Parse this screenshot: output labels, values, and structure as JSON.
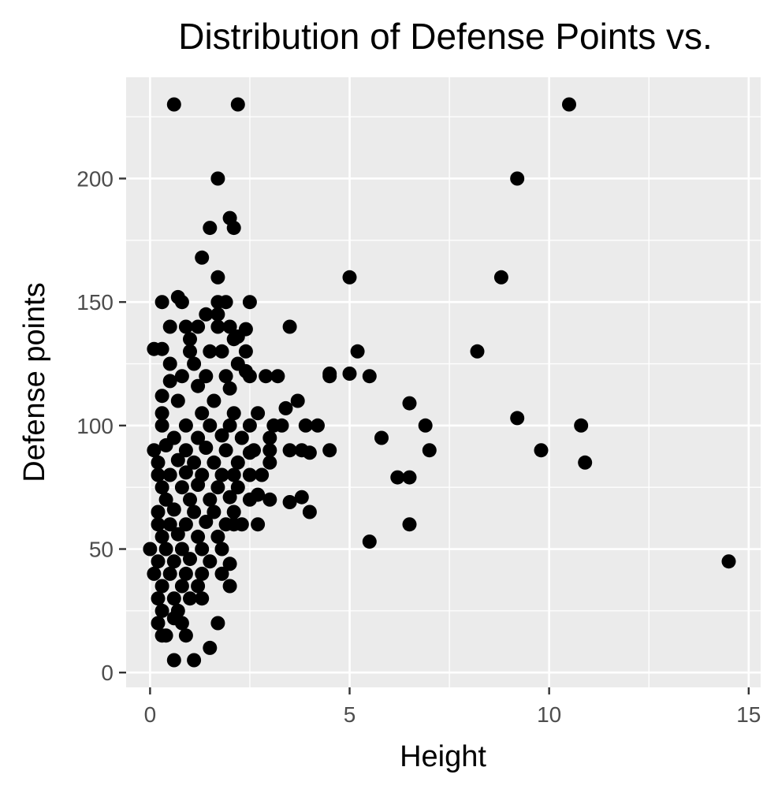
{
  "chart_data": {
    "type": "scatter",
    "title": "Distribution of Defense Points vs.",
    "xlabel": "Height",
    "ylabel": "Defense points",
    "xlim": [
      -0.6,
      15.3
    ],
    "ylim": [
      -6,
      241
    ],
    "x_ticks": [
      0,
      5,
      10,
      15
    ],
    "y_ticks": [
      0,
      50,
      100,
      150,
      200
    ],
    "grid": true,
    "legend": "none",
    "colors": {
      "panel": "#ebebeb",
      "grid": "#ffffff",
      "point": "#000000",
      "tick": "#333333"
    },
    "points": [
      [
        0.6,
        230
      ],
      [
        2.2,
        230
      ],
      [
        10.5,
        230
      ],
      [
        1.7,
        200
      ],
      [
        9.2,
        200
      ],
      [
        2.0,
        184
      ],
      [
        1.5,
        180
      ],
      [
        2.1,
        180
      ],
      [
        1.3,
        168
      ],
      [
        1.7,
        160
      ],
      [
        5.0,
        160
      ],
      [
        8.8,
        160
      ],
      [
        0.3,
        150
      ],
      [
        0.7,
        152
      ],
      [
        0.8,
        150
      ],
      [
        1.7,
        150
      ],
      [
        1.9,
        150
      ],
      [
        2.5,
        150
      ],
      [
        1.4,
        145
      ],
      [
        1.7,
        145
      ],
      [
        0.5,
        140
      ],
      [
        0.9,
        140
      ],
      [
        1.2,
        140
      ],
      [
        1.7,
        140
      ],
      [
        2.0,
        140
      ],
      [
        2.4,
        139
      ],
      [
        3.5,
        140
      ],
      [
        1.0,
        135
      ],
      [
        2.1,
        135
      ],
      [
        2.2,
        136
      ],
      [
        0.1,
        131
      ],
      [
        0.3,
        131
      ],
      [
        1.0,
        130
      ],
      [
        1.5,
        130
      ],
      [
        1.8,
        130
      ],
      [
        2.4,
        130
      ],
      [
        5.2,
        130
      ],
      [
        8.2,
        130
      ],
      [
        0.5,
        125
      ],
      [
        1.1,
        125
      ],
      [
        2.2,
        125
      ],
      [
        2.4,
        122
      ],
      [
        0.8,
        120
      ],
      [
        1.4,
        120
      ],
      [
        1.9,
        120
      ],
      [
        2.5,
        120
      ],
      [
        2.9,
        120
      ],
      [
        3.2,
        120
      ],
      [
        4.5,
        121
      ],
      [
        4.5,
        120
      ],
      [
        5.0,
        121
      ],
      [
        5.5,
        120
      ],
      [
        0.5,
        118
      ],
      [
        1.2,
        116
      ],
      [
        2.0,
        115
      ],
      [
        0.3,
        112
      ],
      [
        0.7,
        110
      ],
      [
        1.6,
        110
      ],
      [
        3.4,
        107
      ],
      [
        3.7,
        110
      ],
      [
        0.3,
        105
      ],
      [
        1.3,
        105
      ],
      [
        2.1,
        105
      ],
      [
        2.7,
        105
      ],
      [
        6.5,
        109
      ],
      [
        9.2,
        103
      ],
      [
        0.3,
        100
      ],
      [
        0.9,
        100
      ],
      [
        1.5,
        100
      ],
      [
        2.0,
        100
      ],
      [
        2.5,
        100
      ],
      [
        3.1,
        100
      ],
      [
        3.3,
        100
      ],
      [
        3.9,
        100
      ],
      [
        4.2,
        100
      ],
      [
        6.9,
        100
      ],
      [
        10.8,
        100
      ],
      [
        0.6,
        95
      ],
      [
        1.2,
        95
      ],
      [
        1.8,
        96
      ],
      [
        2.3,
        95
      ],
      [
        3.0,
        95
      ],
      [
        5.8,
        95
      ],
      [
        0.1,
        90
      ],
      [
        0.4,
        92
      ],
      [
        0.9,
        90
      ],
      [
        1.4,
        91
      ],
      [
        1.9,
        90
      ],
      [
        2.5,
        89
      ],
      [
        2.6,
        90
      ],
      [
        3.0,
        90
      ],
      [
        3.5,
        90
      ],
      [
        3.8,
        90
      ],
      [
        4.0,
        89
      ],
      [
        4.5,
        90
      ],
      [
        7.0,
        90
      ],
      [
        9.8,
        90
      ],
      [
        0.2,
        85
      ],
      [
        0.7,
        86
      ],
      [
        1.1,
        85
      ],
      [
        1.6,
        85
      ],
      [
        2.2,
        85
      ],
      [
        3.0,
        85
      ],
      [
        10.9,
        85
      ],
      [
        0.2,
        80
      ],
      [
        0.5,
        80
      ],
      [
        0.9,
        81
      ],
      [
        1.3,
        80
      ],
      [
        1.8,
        80
      ],
      [
        2.1,
        80
      ],
      [
        2.5,
        80
      ],
      [
        2.8,
        80
      ],
      [
        6.2,
        79
      ],
      [
        6.5,
        79
      ],
      [
        0.3,
        75
      ],
      [
        0.8,
        75
      ],
      [
        1.2,
        76
      ],
      [
        1.7,
        75
      ],
      [
        2.2,
        75
      ],
      [
        0.4,
        70
      ],
      [
        1.0,
        70
      ],
      [
        1.5,
        70
      ],
      [
        2.0,
        71
      ],
      [
        2.5,
        70
      ],
      [
        2.7,
        72
      ],
      [
        3.0,
        70
      ],
      [
        3.5,
        69
      ],
      [
        3.8,
        71
      ],
      [
        0.2,
        65
      ],
      [
        0.6,
        66
      ],
      [
        1.1,
        65
      ],
      [
        1.6,
        65
      ],
      [
        2.1,
        65
      ],
      [
        4.0,
        65
      ],
      [
        0.2,
        60
      ],
      [
        0.5,
        60
      ],
      [
        0.9,
        60
      ],
      [
        1.4,
        61
      ],
      [
        1.9,
        60
      ],
      [
        2.1,
        60
      ],
      [
        2.3,
        60
      ],
      [
        2.7,
        60
      ],
      [
        6.5,
        60
      ],
      [
        0.3,
        55
      ],
      [
        0.7,
        56
      ],
      [
        1.2,
        55
      ],
      [
        1.7,
        55
      ],
      [
        0.0,
        50
      ],
      [
        0.4,
        50
      ],
      [
        0.8,
        50
      ],
      [
        1.3,
        50
      ],
      [
        1.8,
        50
      ],
      [
        5.5,
        53
      ],
      [
        0.2,
        45
      ],
      [
        0.6,
        45
      ],
      [
        1.0,
        46
      ],
      [
        1.5,
        45
      ],
      [
        2.0,
        44
      ],
      [
        14.5,
        45
      ],
      [
        0.1,
        40
      ],
      [
        0.5,
        40
      ],
      [
        0.9,
        40
      ],
      [
        1.3,
        40
      ],
      [
        1.8,
        40
      ],
      [
        0.3,
        35
      ],
      [
        0.8,
        35
      ],
      [
        1.2,
        35
      ],
      [
        2.0,
        35
      ],
      [
        0.2,
        30
      ],
      [
        0.6,
        30
      ],
      [
        1.0,
        30
      ],
      [
        1.3,
        30
      ],
      [
        0.3,
        25
      ],
      [
        0.7,
        25
      ],
      [
        0.2,
        20
      ],
      [
        0.6,
        22
      ],
      [
        0.8,
        20
      ],
      [
        1.7,
        20
      ],
      [
        0.3,
        15
      ],
      [
        0.4,
        15
      ],
      [
        0.9,
        15
      ],
      [
        0.6,
        5
      ],
      [
        1.1,
        5
      ],
      [
        1.5,
        10
      ]
    ]
  }
}
